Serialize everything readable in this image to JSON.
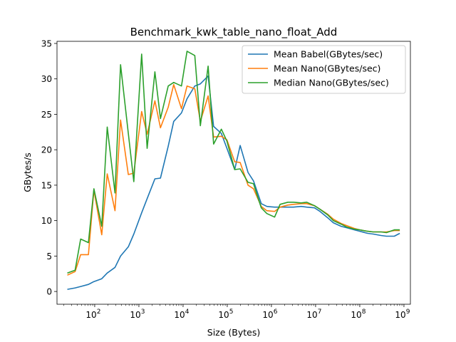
{
  "chart_data": {
    "type": "line",
    "title": "Benchmark_kwk_table_nano_float_Add",
    "xlabel": "Size (Bytes)",
    "ylabel": "GBytes/s",
    "xscale": "log",
    "xlim": [
      14,
      1400000000
    ],
    "ylim": [
      -1.8,
      35.3
    ],
    "grid": false,
    "legend_position": "top-right",
    "x_ticks": [
      {
        "value": 100,
        "base": "10",
        "exp": "2"
      },
      {
        "value": 1000,
        "base": "10",
        "exp": "3"
      },
      {
        "value": 10000,
        "base": "10",
        "exp": "4"
      },
      {
        "value": 100000,
        "base": "10",
        "exp": "5"
      },
      {
        "value": 1000000,
        "base": "10",
        "exp": "6"
      },
      {
        "value": 10000000,
        "base": "10",
        "exp": "7"
      },
      {
        "value": 100000000,
        "base": "10",
        "exp": "8"
      },
      {
        "value": 1000000000,
        "base": "10",
        "exp": "9"
      }
    ],
    "y_ticks": [
      0,
      5,
      10,
      15,
      20,
      25,
      30,
      35
    ],
    "x": [
      24,
      36,
      48,
      72,
      96,
      144,
      192,
      288,
      384,
      576,
      768,
      1152,
      1536,
      2304,
      3072,
      4608,
      6144,
      9216,
      12288,
      18432,
      24576,
      36864,
      49152,
      73728,
      98304,
      147456,
      196608,
      294912,
      393216,
      589824,
      786432,
      1179648,
      1572864,
      2359296,
      3145728,
      4718592,
      6291456,
      9437184,
      12582912,
      18874368,
      25165824,
      37748736,
      50331648,
      75497472,
      100663296,
      150994944,
      201326592,
      301989888,
      402653184,
      603979776,
      805306368
    ],
    "series": [
      {
        "name": "Mean Babel(GBytes/sec)",
        "color": "#1f77b4",
        "values": [
          0.3,
          0.5,
          0.7,
          1.0,
          1.4,
          1.8,
          2.6,
          3.4,
          5.0,
          6.3,
          8.1,
          11.1,
          13.1,
          15.9,
          16.0,
          20.5,
          24.0,
          25.2,
          27.2,
          29.0,
          29.3,
          30.4,
          23.3,
          22.3,
          20.2,
          17.2,
          20.6,
          16.8,
          15.6,
          12.4,
          12.0,
          11.9,
          11.9,
          11.9,
          11.9,
          12.0,
          11.9,
          11.8,
          11.3,
          10.4,
          9.7,
          9.2,
          9.0,
          8.7,
          8.5,
          8.2,
          8.1,
          7.9,
          7.8,
          7.8,
          8.2
        ]
      },
      {
        "name": "Mean Nano(GBytes/sec)",
        "color": "#ff7f0e",
        "values": [
          2.3,
          2.8,
          5.2,
          5.2,
          14.3,
          8.0,
          16.6,
          11.4,
          24.2,
          16.5,
          16.7,
          25.4,
          22.2,
          26.9,
          23.1,
          26.0,
          29.2,
          25.8,
          29.0,
          28.6,
          24.0,
          27.6,
          21.8,
          21.9,
          21.4,
          18.3,
          18.2,
          15.0,
          14.5,
          12.0,
          11.4,
          11.3,
          11.9,
          12.2,
          12.3,
          12.4,
          12.4,
          12.1,
          11.6,
          10.9,
          10.2,
          9.6,
          9.3,
          8.9,
          8.7,
          8.5,
          8.4,
          8.4,
          8.4,
          8.6,
          8.6
        ]
      },
      {
        "name": "Median Nano(GBytes/sec)",
        "color": "#2ca02c",
        "values": [
          2.6,
          3.0,
          7.4,
          6.9,
          14.5,
          9.2,
          23.2,
          13.9,
          32.0,
          22.3,
          15.5,
          33.5,
          20.2,
          31.0,
          24.4,
          29.0,
          29.5,
          29.0,
          33.9,
          33.3,
          23.4,
          31.8,
          20.8,
          22.9,
          21.2,
          17.2,
          17.3,
          15.4,
          15.2,
          11.8,
          11.0,
          10.5,
          12.3,
          12.6,
          12.6,
          12.5,
          12.6,
          12.1,
          11.6,
          10.8,
          10.0,
          9.5,
          9.1,
          8.8,
          8.7,
          8.5,
          8.4,
          8.4,
          8.3,
          8.7,
          8.7
        ]
      }
    ]
  }
}
